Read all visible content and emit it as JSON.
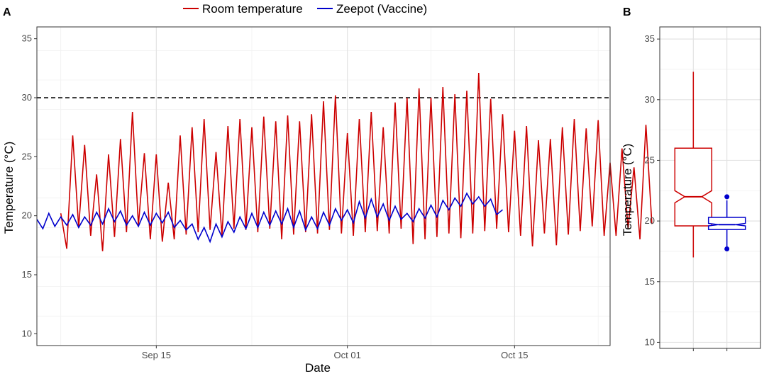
{
  "legend": {
    "items": [
      {
        "label": "Room temperature",
        "color": "#cc0000"
      },
      {
        "label": "Zeepot (Vaccine)",
        "color": "#0000cc"
      }
    ]
  },
  "chart_data": [
    {
      "panel_label": "A",
      "type": "line",
      "xlabel": "Date",
      "ylabel": "Temperature (°C)",
      "xlim": [
        "2019-09-05",
        "2019-10-23"
      ],
      "ylim": [
        9,
        36
      ],
      "yticks": [
        10,
        15,
        20,
        25,
        30,
        35
      ],
      "xticks": [
        {
          "value": "2019-09-15",
          "label": "Sep 15"
        },
        {
          "value": "2019-10-01",
          "label": "Oct 01"
        },
        {
          "value": "2019-10-15",
          "label": "Oct 15"
        }
      ],
      "grid": true,
      "threshold_line": {
        "y": 30,
        "style": "dashed",
        "color": "#000000"
      },
      "legend_position": "top",
      "series": [
        {
          "name": "Room temperature",
          "color": "#cc0000",
          "x_start": "2019-09-07",
          "x_step_days": 0.5,
          "values": [
            20.2,
            17.2,
            26.8,
            19.0,
            26.0,
            18.3,
            23.5,
            17.0,
            25.2,
            18.2,
            26.5,
            18.6,
            28.8,
            19.2,
            25.3,
            18.0,
            25.2,
            17.8,
            22.8,
            18.0,
            26.8,
            18.4,
            27.5,
            18.6,
            28.2,
            18.8,
            25.4,
            18.3,
            27.6,
            18.9,
            28.2,
            18.8,
            27.5,
            18.6,
            28.4,
            18.9,
            28.0,
            18.0,
            28.5,
            18.4,
            28.0,
            18.6,
            28.6,
            18.5,
            29.7,
            18.8,
            30.2,
            18.5,
            27.0,
            18.3,
            28.2,
            18.6,
            28.8,
            18.7,
            27.5,
            18.5,
            29.6,
            18.9,
            30.0,
            17.6,
            30.8,
            18.0,
            30.0,
            18.2,
            30.9,
            18.5,
            30.3,
            18.1,
            30.6,
            18.5,
            32.1,
            18.7,
            29.9,
            18.9,
            28.6,
            18.6,
            27.2,
            18.3,
            27.6,
            17.4,
            26.4,
            18.5,
            26.5,
            17.5,
            27.5,
            18.4,
            28.2,
            18.7,
            27.4,
            19.1,
            28.1,
            18.3,
            24.5,
            18.3,
            25.7,
            18.9,
            24.1,
            18.0,
            27.7,
            19.3
          ]
        },
        {
          "name": "Zeepot (Vaccine)",
          "color": "#0000cc",
          "x_start": "2019-09-05",
          "x_step_days": 0.5,
          "values": [
            19.7,
            18.9,
            20.2,
            19.1,
            19.9,
            19.2,
            20.1,
            19.0,
            19.9,
            19.2,
            20.3,
            19.3,
            20.6,
            19.5,
            20.4,
            19.2,
            20.0,
            19.1,
            20.3,
            19.2,
            20.2,
            19.4,
            20.3,
            19.0,
            19.6,
            18.8,
            19.3,
            18.0,
            19.0,
            17.8,
            19.3,
            18.2,
            19.5,
            18.6,
            19.9,
            18.9,
            20.2,
            19.0,
            20.3,
            19.2,
            20.4,
            19.3,
            20.6,
            19.0,
            20.4,
            18.8,
            19.9,
            18.9,
            20.3,
            19.2,
            20.6,
            19.6,
            20.5,
            19.4,
            21.2,
            19.8,
            21.4,
            19.9,
            21.0,
            19.6,
            20.8,
            19.7,
            20.2,
            19.5,
            20.6,
            19.8,
            20.9,
            19.9,
            21.3,
            20.5,
            21.5,
            20.8,
            21.9,
            21.0,
            21.6,
            20.8,
            21.4,
            20.1,
            20.5
          ]
        }
      ]
    },
    {
      "panel_label": "B",
      "type": "boxplot",
      "ylabel": "Temperature (°C)",
      "ylim": [
        9.5,
        36
      ],
      "yticks": [
        10,
        15,
        20,
        25,
        30,
        35
      ],
      "grid": true,
      "notched": true,
      "boxes": [
        {
          "group": "Room temperature",
          "color": "#cc0000",
          "min": 17.0,
          "q1": 19.6,
          "notch_low": 21.5,
          "median": 22.0,
          "notch_high": 22.5,
          "q3": 26.0,
          "max": 32.3,
          "outliers": []
        },
        {
          "group": "Zeepot (Vaccine)",
          "color": "#0000cc",
          "min": 17.7,
          "q1": 19.3,
          "notch_low": 19.6,
          "median": 19.7,
          "notch_high": 19.8,
          "q3": 20.3,
          "max": 21.7,
          "outliers": [
            22.0,
            17.7
          ]
        }
      ]
    }
  ]
}
